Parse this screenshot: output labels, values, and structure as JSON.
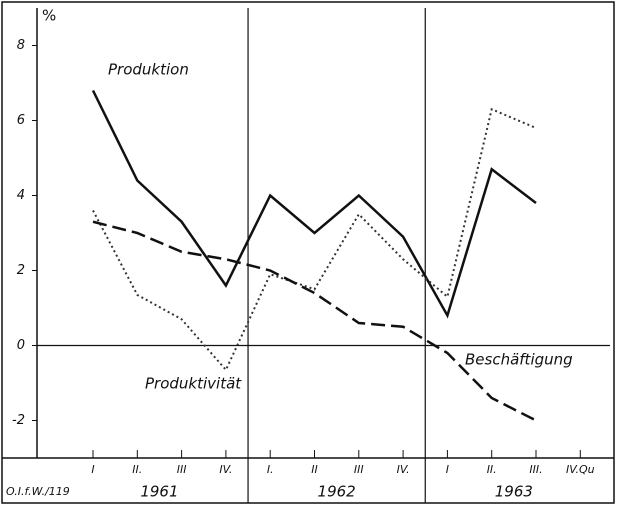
{
  "chart_data": {
    "type": "line",
    "y_unit": "%",
    "categories": [
      "I",
      "II.",
      "III",
      "IV.",
      "I.",
      "II",
      "III",
      "IV.",
      "I",
      "II.",
      "III.",
      "IV.Qu"
    ],
    "groups": [
      "1961",
      "1962",
      "1963"
    ],
    "annotation": "O.I.f.W./119",
    "series": [
      {
        "name": "Produktion",
        "color": "#111111",
        "style": "solid",
        "values": [
          6.8,
          4.4,
          3.3,
          1.6,
          4.0,
          3.0,
          4.0,
          2.9,
          0.8,
          4.7,
          3.8,
          null
        ]
      },
      {
        "name": "Produktivität",
        "color": "#333333",
        "style": "dotted",
        "values": [
          3.6,
          1.35,
          0.7,
          -0.65,
          1.9,
          1.5,
          3.5,
          2.3,
          1.3,
          6.3,
          5.8,
          null
        ]
      },
      {
        "name": "Beschäftigung",
        "color": "#111111",
        "style": "dashed",
        "values": [
          3.3,
          3.0,
          2.5,
          2.3,
          2.0,
          1.4,
          0.6,
          0.5,
          -0.2,
          -1.4,
          -2.0,
          null
        ]
      }
    ],
    "ylim": [
      -3,
      9
    ],
    "yticks": [
      -2,
      0,
      2,
      4,
      6,
      8
    ]
  }
}
